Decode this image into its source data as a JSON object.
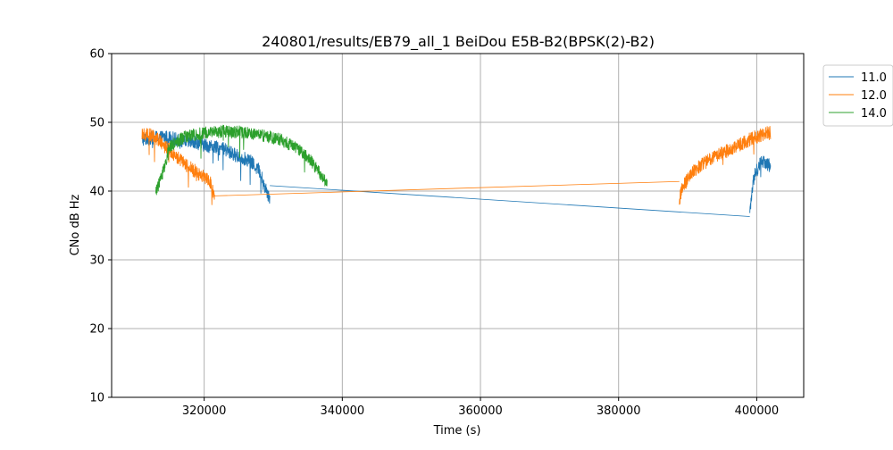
{
  "chart_data": {
    "type": "line",
    "title": "240801/results/EB79_all_1 BeiDou E5B-B2(BPSK(2)-B2)",
    "xlabel": "Time (s)",
    "ylabel": "CNo dB Hz",
    "xlim": [
      306600,
      406800
    ],
    "ylim": [
      10,
      60
    ],
    "xticks": [
      320000,
      340000,
      360000,
      380000,
      400000
    ],
    "xtick_labels": [
      "320000",
      "340000",
      "360000",
      "380000",
      "400000"
    ],
    "yticks": [
      10,
      20,
      30,
      40,
      50,
      60
    ],
    "ytick_labels": [
      "10",
      "20",
      "30",
      "40",
      "50",
      "60"
    ],
    "grid": true,
    "legend_position": "upper-right-outside",
    "series": [
      {
        "name": "11.0",
        "color": "#1f77b4",
        "segments": [
          {
            "x_start": 311000,
            "x_end": 329500,
            "x": [
              311000,
              313000,
              315000,
              317000,
              319000,
              321000,
              323000,
              325000,
              326500,
              328000,
              329000,
              329500
            ],
            "y": [
              47.5,
              47.8,
              47.8,
              47.2,
              47.0,
              46.5,
              46.0,
              45.0,
              44.5,
              43.0,
              40.0,
              39.0
            ],
            "noise": 1.0
          },
          {
            "x_start": 399000,
            "x_end": 402000,
            "x": [
              399000,
              399300,
              399600,
              400000,
              400500,
              401000,
              401500,
              402000
            ],
            "y": [
              37.0,
              40.0,
              42.0,
              43.0,
              44.0,
              44.5,
              44.0,
              43.5
            ],
            "noise": 1.0
          }
        ],
        "connector": {
          "x": [
            329500,
            399000
          ],
          "y": [
            40.8,
            36.3
          ]
        }
      },
      {
        "name": "12.0",
        "color": "#ff7f0e",
        "segments": [
          {
            "x_start": 311000,
            "x_end": 321500,
            "x": [
              311000,
              312500,
              314000,
              315500,
              317000,
              318500,
              320000,
              321000,
              321500
            ],
            "y": [
              48.5,
              48.0,
              47.0,
              45.5,
              44.0,
              43.0,
              42.0,
              41.0,
              39.0
            ],
            "noise": 1.0
          },
          {
            "x_start": 388800,
            "x_end": 402000,
            "x": [
              388800,
              389500,
              391000,
              393000,
              395000,
              397000,
              399000,
              401000,
              402000
            ],
            "y": [
              39.0,
              41.0,
              43.0,
              44.5,
              45.5,
              46.5,
              47.5,
              48.3,
              48.5
            ],
            "noise": 1.0
          }
        ],
        "connector": {
          "x": [
            321500,
            388800
          ],
          "y": [
            39.3,
            41.4
          ]
        }
      },
      {
        "name": "14.0",
        "color": "#2ca02c",
        "segments": [
          {
            "x_start": 313000,
            "x_end": 337800,
            "x": [
              313000,
              313800,
              315000,
              317000,
              319000,
              321000,
              323000,
              325000,
              327000,
              329000,
              331000,
              333000,
              335000,
              336500,
              337800
            ],
            "y": [
              40.0,
              42.0,
              46.5,
              47.8,
              48.3,
              48.6,
              48.7,
              48.6,
              48.3,
              48.0,
              47.5,
              46.5,
              45.0,
              43.0,
              41.0
            ],
            "noise": 0.9
          }
        ],
        "connector": null
      }
    ]
  }
}
